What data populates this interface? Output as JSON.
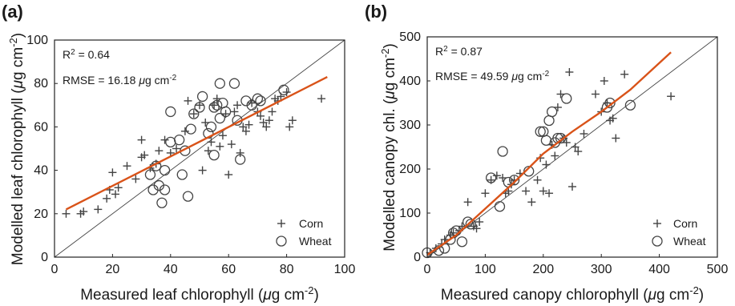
{
  "chart_data": [
    {
      "panel_tag": "(a)",
      "type": "scatter",
      "xlabel_main": "Measured leaf chlorophyll (",
      "xlabel_mu": "μ",
      "xlabel_unit": "g cm",
      "xlabel_exp": "-2",
      "xlabel_close": ")",
      "ylabel_main": "Modelled leaf chlorophyll (",
      "ylabel_mu": "μ",
      "ylabel_unit": "g cm",
      "ylabel_exp": "-2",
      "ylabel_close": ")",
      "xlim": [
        0,
        100
      ],
      "ylim": [
        0,
        100
      ],
      "xticks": [
        0,
        20,
        40,
        60,
        80,
        100
      ],
      "yticks": [
        0,
        20,
        40,
        60,
        80,
        100
      ],
      "stats": {
        "r2_label": "R",
        "r2_sup": "2",
        "r2_value": " = 0.64",
        "rmse_label": "RMSE = 16.18 ",
        "rmse_mu": "μ",
        "rmse_unit": "g cm",
        "rmse_exp": "-2"
      },
      "legend": [
        "Corn",
        "Wheat"
      ],
      "fit_line": [
        [
          4,
          22
        ],
        [
          94,
          83
        ]
      ],
      "one_to_one": true,
      "series": [
        {
          "name": "Corn",
          "marker": "plus",
          "points": [
            [
              4,
              20
            ],
            [
              9,
              20
            ],
            [
              10,
              21
            ],
            [
              15,
              22
            ],
            [
              18,
              27
            ],
            [
              19,
              31
            ],
            [
              20,
              39
            ],
            [
              21,
              29
            ],
            [
              22,
              32
            ],
            [
              25,
              42
            ],
            [
              28,
              36
            ],
            [
              30,
              46
            ],
            [
              30,
              54
            ],
            [
              31,
              47
            ],
            [
              33,
              41
            ],
            [
              35,
              43
            ],
            [
              36,
              49
            ],
            [
              38,
              54
            ],
            [
              40,
              48
            ],
            [
              42,
              50
            ],
            [
              45,
              58
            ],
            [
              46,
              72
            ],
            [
              48,
              66
            ],
            [
              50,
              70
            ],
            [
              51,
              40
            ],
            [
              52,
              62
            ],
            [
              53,
              49
            ],
            [
              54,
              53
            ],
            [
              55,
              70
            ],
            [
              56,
              73
            ],
            [
              57,
              51
            ],
            [
              58,
              56
            ],
            [
              59,
              66
            ],
            [
              60,
              38
            ],
            [
              61,
              52
            ],
            [
              62,
              67
            ],
            [
              63,
              70
            ],
            [
              64,
              48
            ],
            [
              65,
              60
            ],
            [
              66,
              58
            ],
            [
              67,
              61
            ],
            [
              68,
              71
            ],
            [
              70,
              67
            ],
            [
              71,
              65
            ],
            [
              72,
              62
            ],
            [
              73,
              60
            ],
            [
              74,
              63
            ],
            [
              75,
              67
            ],
            [
              76,
              73
            ],
            [
              77,
              72
            ],
            [
              78,
              74
            ],
            [
              80,
              76
            ],
            [
              81,
              60
            ],
            [
              82,
              63
            ],
            [
              92,
              73
            ]
          ]
        },
        {
          "name": "Wheat",
          "marker": "circle",
          "points": [
            [
              33,
              38
            ],
            [
              34,
              31
            ],
            [
              35,
              42
            ],
            [
              36,
              33
            ],
            [
              37,
              25
            ],
            [
              38,
              31
            ],
            [
              38,
              40
            ],
            [
              40,
              67
            ],
            [
              40,
              53
            ],
            [
              43,
              54
            ],
            [
              44,
              38
            ],
            [
              45,
              49
            ],
            [
              46,
              28
            ],
            [
              47,
              59
            ],
            [
              48,
              66
            ],
            [
              50,
              69
            ],
            [
              51,
              74
            ],
            [
              53,
              57
            ],
            [
              54,
              60
            ],
            [
              55,
              47
            ],
            [
              55,
              69
            ],
            [
              56,
              70
            ],
            [
              57,
              64
            ],
            [
              57,
              80
            ],
            [
              58,
              71
            ],
            [
              59,
              67
            ],
            [
              62,
              80
            ],
            [
              63,
              63
            ],
            [
              64,
              45
            ],
            [
              66,
              72
            ],
            [
              68,
              70
            ],
            [
              70,
              73
            ],
            [
              71,
              72
            ],
            [
              79,
              77
            ]
          ]
        }
      ]
    },
    {
      "panel_tag": "(b)",
      "type": "scatter",
      "xlabel_main": "Measured canopy chlorophyll (",
      "xlabel_mu": "μ",
      "xlabel_unit": "g cm",
      "xlabel_exp": "-2",
      "xlabel_close": ")",
      "ylabel_main": "Modelled canopy chl. (",
      "ylabel_mu": "μ",
      "ylabel_unit": "g cm",
      "ylabel_exp": "-2",
      "ylabel_close": ")",
      "xlim": [
        0,
        500
      ],
      "ylim": [
        0,
        500
      ],
      "xticks": [
        0,
        100,
        200,
        300,
        400,
        500
      ],
      "yticks": [
        0,
        100,
        200,
        300,
        400,
        500
      ],
      "stats": {
        "r2_label": "R",
        "r2_sup": "2",
        "r2_value": " = 0.87",
        "rmse_label": "RMSE = 49.59 ",
        "rmse_mu": "μ",
        "rmse_unit": "g cm",
        "rmse_exp": "-2"
      },
      "legend": [
        "Corn",
        "Wheat"
      ],
      "fit_line": [
        [
          0,
          5
        ],
        [
          50,
          50
        ],
        [
          100,
          110
        ],
        [
          150,
          170
        ],
        [
          200,
          235
        ],
        [
          250,
          285
        ],
        [
          300,
          330
        ],
        [
          350,
          380
        ],
        [
          420,
          465
        ]
      ],
      "one_to_one": true,
      "series": [
        {
          "name": "Corn",
          "marker": "plus",
          "points": [
            [
              5,
              10
            ],
            [
              15,
              20
            ],
            [
              25,
              30
            ],
            [
              30,
              40
            ],
            [
              40,
              50
            ],
            [
              45,
              55
            ],
            [
              55,
              60
            ],
            [
              60,
              70
            ],
            [
              70,
              125
            ],
            [
              80,
              70
            ],
            [
              85,
              65
            ],
            [
              90,
              80
            ],
            [
              100,
              145
            ],
            [
              110,
              175
            ],
            [
              120,
              185
            ],
            [
              130,
              180
            ],
            [
              135,
              145
            ],
            [
              140,
              150
            ],
            [
              145,
              165
            ],
            [
              150,
              175
            ],
            [
              160,
              190
            ],
            [
              170,
              150
            ],
            [
              180,
              125
            ],
            [
              190,
              175
            ],
            [
              195,
              225
            ],
            [
              200,
              150
            ],
            [
              205,
              210
            ],
            [
              210,
              145
            ],
            [
              215,
              255
            ],
            [
              220,
              230
            ],
            [
              225,
              340
            ],
            [
              230,
              370
            ],
            [
              235,
              270
            ],
            [
              240,
              260
            ],
            [
              245,
              420
            ],
            [
              250,
              160
            ],
            [
              255,
              250
            ],
            [
              260,
              240
            ],
            [
              270,
              280
            ],
            [
              290,
              370
            ],
            [
              300,
              330
            ],
            [
              305,
              400
            ],
            [
              310,
              350
            ],
            [
              315,
              310
            ],
            [
              320,
              315
            ],
            [
              325,
              270
            ],
            [
              340,
              415
            ],
            [
              420,
              365
            ]
          ]
        },
        {
          "name": "Wheat",
          "marker": "circle",
          "points": [
            [
              0,
              10
            ],
            [
              20,
              15
            ],
            [
              30,
              20
            ],
            [
              40,
              40
            ],
            [
              45,
              55
            ],
            [
              50,
              60
            ],
            [
              60,
              35
            ],
            [
              70,
              80
            ],
            [
              75,
              75
            ],
            [
              110,
              180
            ],
            [
              125,
              115
            ],
            [
              130,
              240
            ],
            [
              140,
              170
            ],
            [
              150,
              175
            ],
            [
              175,
              195
            ],
            [
              195,
              285
            ],
            [
              200,
              285
            ],
            [
              205,
              265
            ],
            [
              210,
              310
            ],
            [
              215,
              330
            ],
            [
              220,
              260
            ],
            [
              225,
              270
            ],
            [
              230,
              270
            ],
            [
              240,
              360
            ],
            [
              310,
              340
            ],
            [
              315,
              350
            ],
            [
              350,
              345
            ]
          ]
        }
      ]
    }
  ]
}
